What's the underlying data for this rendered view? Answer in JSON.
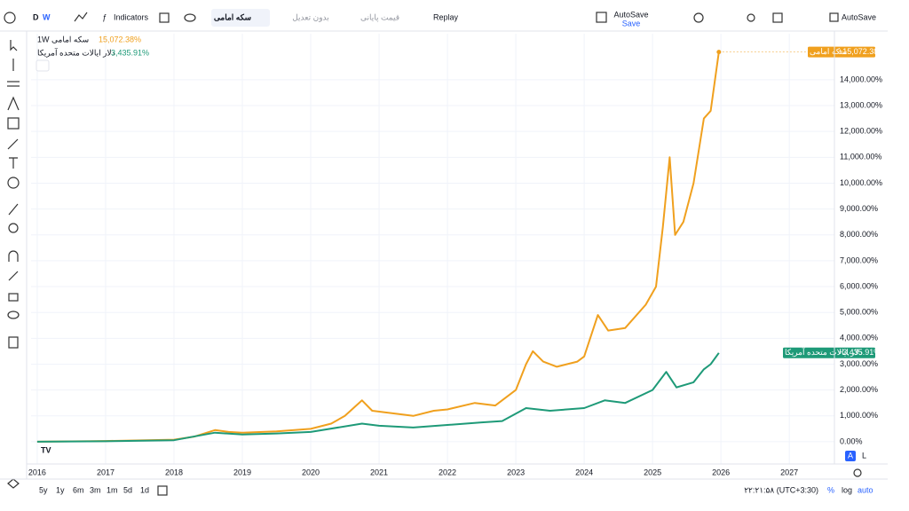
{
  "toolbar": {
    "symbol_keys": [
      "D",
      "W"
    ],
    "indicators": "Indicators",
    "symbol": "سکه امامی",
    "adjustment": "بدون تعدیل",
    "price_type": "قیمت پایانی",
    "replay": "Replay",
    "autosave": "AutoSave",
    "save": "Save",
    "autosave_toggle": "AutoSave"
  },
  "bottom_bar": {
    "ranges": [
      "5y",
      "1y",
      "6m",
      "3m",
      "1m",
      "5d",
      "1d"
    ],
    "clock": "۲۲:۲۱:۵۸ (UTC+3:30)",
    "percent": "%",
    "log": "log",
    "auto": "auto",
    "scale_a": "A",
    "scale_l": "L"
  },
  "chart_data": {
    "type": "line",
    "interval": "1W",
    "xlim": [
      2015.91,
      2027.66
    ],
    "xticks": [
      2016,
      2017,
      2018,
      2019,
      2020,
      2021,
      2022,
      2023,
      2024,
      2025,
      2026,
      2027
    ],
    "ylim": [
      -860,
      15780
    ],
    "yticks": [
      {
        "value": 0,
        "label": "0.00%"
      },
      {
        "value": 1000,
        "label": "1,000.00%"
      },
      {
        "value": 2000,
        "label": "2,000.00%"
      },
      {
        "value": 3000,
        "label": "3,000.00%"
      },
      {
        "value": 4000,
        "label": "4,000.00%"
      },
      {
        "value": 5000,
        "label": "5,000.00%"
      },
      {
        "value": 6000,
        "label": "6,000.00%"
      },
      {
        "value": 7000,
        "label": "7,000.00%"
      },
      {
        "value": 8000,
        "label": "8,000.00%"
      },
      {
        "value": 9000,
        "label": "9,000.00%"
      },
      {
        "value": 10000,
        "label": "10,000.00%"
      },
      {
        "value": 11000,
        "label": "11,000.00%"
      },
      {
        "value": 12000,
        "label": "12,000.00%"
      },
      {
        "value": 13000,
        "label": "13,000.00%"
      },
      {
        "value": 14000,
        "label": "14,000.00%"
      }
    ],
    "grid": true,
    "series": [
      {
        "name": "سکه امامی",
        "color": "#f0a01e",
        "value_label": "15,072.38%",
        "last_label": "+15,072.38%",
        "x": [
          2016.0,
          2017.0,
          2018.0,
          2018.3,
          2018.6,
          2018.8,
          2019.0,
          2019.5,
          2020.0,
          2020.3,
          2020.5,
          2020.75,
          2020.9,
          2021.2,
          2021.5,
          2021.8,
          2022.0,
          2022.4,
          2022.7,
          2023.0,
          2023.15,
          2023.25,
          2023.4,
          2023.6,
          2023.9,
          2024.0,
          2024.2,
          2024.35,
          2024.6,
          2024.9,
          2025.05,
          2025.15,
          2025.25,
          2025.33,
          2025.45,
          2025.6,
          2025.75,
          2025.85,
          2025.97
        ],
        "values": [
          0,
          30,
          80,
          200,
          450,
          380,
          350,
          400,
          500,
          700,
          1000,
          1600,
          1200,
          1100,
          1000,
          1200,
          1250,
          1500,
          1400,
          2000,
          3000,
          3500,
          3100,
          2900,
          3100,
          3300,
          4900,
          4300,
          4400,
          5300,
          6000,
          8300,
          11000,
          8000,
          8500,
          10000,
          12500,
          12800,
          15072.38
        ]
      },
      {
        "name": "دلار ایالات متحده آمریکا",
        "color": "#1e9a78",
        "value_label": "3,435.91%",
        "last_label": "+3,435.91%",
        "x": [
          2016.0,
          2017.0,
          2018.0,
          2018.6,
          2019.0,
          2019.5,
          2020.0,
          2020.75,
          2021.0,
          2021.5,
          2022.0,
          2022.5,
          2022.8,
          2023.15,
          2023.5,
          2024.0,
          2024.3,
          2024.6,
          2025.0,
          2025.2,
          2025.35,
          2025.6,
          2025.75,
          2025.85,
          2025.97
        ],
        "values": [
          0,
          20,
          60,
          350,
          280,
          320,
          380,
          700,
          620,
          550,
          650,
          750,
          800,
          1300,
          1200,
          1300,
          1600,
          1500,
          2000,
          2700,
          2100,
          2300,
          2800,
          3000,
          3435.91
        ]
      }
    ]
  }
}
